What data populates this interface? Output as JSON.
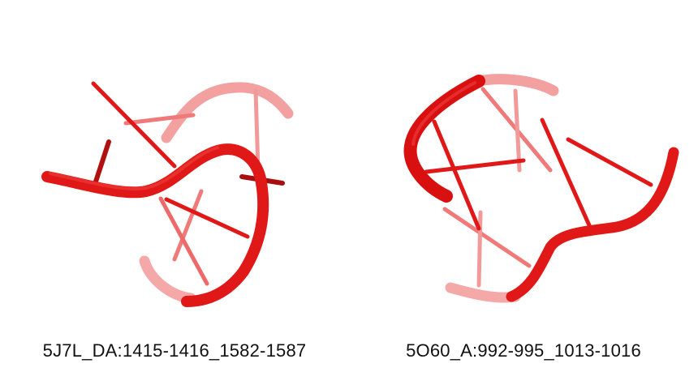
{
  "figure": {
    "structures": [
      {
        "id": "left",
        "label": "5J7L_DA:1415-1416_1582-1587"
      },
      {
        "id": "right",
        "label": "5O60_A:992-995_1013-1016"
      }
    ],
    "colors": {
      "backbone": "#e01818",
      "backbone_faded": "#f07070",
      "base": "#e01818",
      "base_faded": "#f08a8a"
    }
  }
}
